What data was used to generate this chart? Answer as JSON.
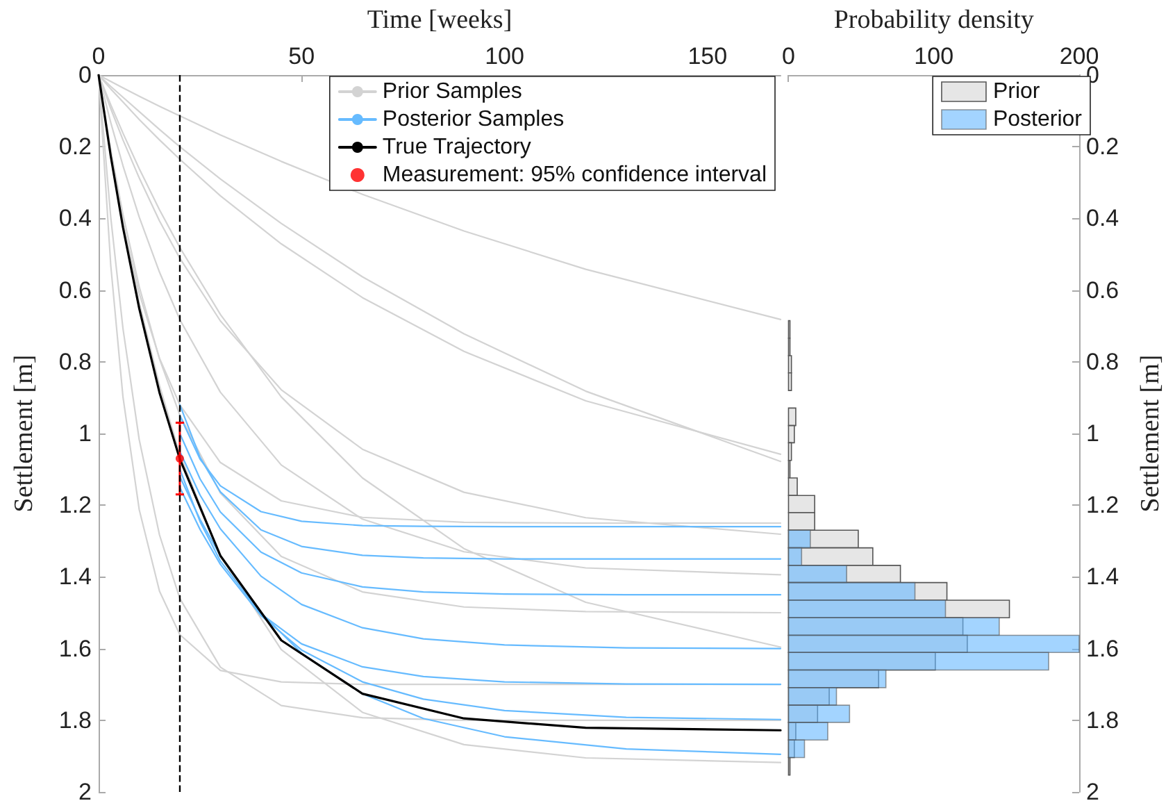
{
  "chart_data": [
    {
      "type": "line",
      "xlabel": "Time [weeks]",
      "ylabel": "Settlement [m]",
      "xlim": [
        0,
        168
      ],
      "xticks": [
        0,
        50,
        100,
        150
      ],
      "ylim": [
        2,
        0
      ],
      "yticks": [
        0,
        0.2,
        0.4,
        0.6,
        0.8,
        1,
        1.2,
        1.4,
        1.6,
        1.8,
        2
      ],
      "legend": "top right",
      "grid": false,
      "marker": "none",
      "line_style": "solid",
      "ref_lines": [
        {
          "axis": "x",
          "value": 20,
          "color": "#000000",
          "line_style": "dashed"
        }
      ],
      "series": [
        {
          "name": "Prior Samples",
          "color": "#d3d3d3",
          "x": [
            0,
            3,
            6,
            10,
            15,
            20,
            30,
            45,
            65,
            90,
            120,
            168
          ],
          "values": [
            0,
            0.018,
            0.036,
            0.059,
            0.087,
            0.114,
            0.167,
            0.241,
            0.333,
            0.435,
            0.542,
            0.682
          ]
        },
        {
          "color": "#d3d3d3",
          "x": [
            0,
            3,
            6,
            10,
            15,
            20,
            30,
            45,
            65,
            90,
            120,
            168
          ],
          "values": [
            0,
            0.039,
            0.075,
            0.124,
            0.181,
            0.235,
            0.337,
            0.471,
            0.621,
            0.771,
            0.909,
            1.058
          ]
        },
        {
          "color": "#d3d3d3",
          "x": [
            0,
            3,
            6,
            10,
            15,
            20,
            30,
            45,
            65,
            90,
            120,
            168
          ],
          "values": [
            0,
            0.094,
            0.181,
            0.287,
            0.407,
            0.511,
            0.686,
            0.878,
            1.044,
            1.164,
            1.235,
            1.281
          ]
        },
        {
          "color": "#d3d3d3",
          "x": [
            0,
            3,
            6,
            10,
            15,
            20,
            30,
            45,
            65,
            90,
            120,
            168
          ],
          "values": [
            0,
            0.209,
            0.389,
            0.59,
            0.792,
            0.948,
            1.166,
            1.343,
            1.442,
            1.484,
            1.497,
            1.5
          ]
        },
        {
          "color": "#d3d3d3",
          "x": [
            0,
            3,
            6,
            10,
            15,
            20,
            30,
            45,
            65,
            90,
            120,
            168
          ],
          "values": [
            0,
            0.532,
            0.898,
            1.212,
            1.44,
            1.561,
            1.661,
            1.693,
            1.7,
            1.7,
            1.7,
            1.7
          ]
        },
        {
          "color": "#d3d3d3",
          "x": [
            0,
            3,
            6,
            10,
            15,
            20,
            30,
            45,
            65,
            90,
            120,
            168
          ],
          "values": [
            0,
            0.217,
            0.409,
            0.634,
            0.866,
            1.058,
            1.342,
            1.603,
            1.778,
            1.868,
            1.905,
            1.918
          ]
        },
        {
          "color": "#d3d3d3",
          "x": [
            0,
            3,
            6,
            10,
            15,
            20,
            30,
            45,
            65,
            90,
            120,
            168
          ],
          "values": [
            0,
            0.398,
            0.707,
            1.017,
            1.283,
            1.46,
            1.652,
            1.759,
            1.793,
            1.8,
            1.8,
            1.8
          ]
        },
        {
          "color": "#d3d3d3",
          "x": [
            0,
            3,
            6,
            10,
            15,
            20,
            30,
            45,
            65,
            90,
            120,
            168
          ],
          "values": [
            0,
            0.083,
            0.162,
            0.261,
            0.376,
            0.481,
            0.668,
            0.898,
            1.124,
            1.321,
            1.471,
            1.596
          ]
        },
        {
          "color": "#d3d3d3",
          "x": [
            0,
            3,
            6,
            10,
            15,
            20,
            30,
            45,
            65,
            90,
            120,
            168
          ],
          "values": [
            0,
            0.032,
            0.062,
            0.102,
            0.152,
            0.2,
            0.29,
            0.414,
            0.563,
            0.722,
            0.882,
            1.078
          ]
        },
        {
          "color": "#d3d3d3",
          "x": [
            0,
            3,
            6,
            10,
            15,
            20,
            30,
            45,
            65,
            90,
            120,
            168
          ],
          "values": [
            0,
            0.133,
            0.253,
            0.396,
            0.55,
            0.682,
            0.885,
            1.088,
            1.239,
            1.33,
            1.375,
            1.394
          ]
        },
        {
          "color": "#d3d3d3",
          "x": [
            0,
            3,
            6,
            10,
            15,
            20,
            30,
            45,
            65,
            90,
            120,
            168
          ],
          "values": [
            0,
            0.226,
            0.413,
            0.609,
            0.79,
            0.92,
            1.081,
            1.188,
            1.234,
            1.248,
            1.25,
            1.25
          ]
        },
        {
          "name": "Posterior Samples",
          "color": "#66bbff",
          "x": [
            20,
            25,
            30,
            40,
            50,
            65,
            80,
            100,
            130,
            168
          ],
          "values": [
            0.95,
            1.072,
            1.146,
            1.218,
            1.245,
            1.257,
            1.259,
            1.26,
            1.26,
            1.26
          ]
        },
        {
          "color": "#66bbff",
          "x": [
            20,
            25,
            30,
            40,
            50,
            65,
            80,
            100,
            130,
            168
          ],
          "values": [
            1.0,
            1.127,
            1.219,
            1.331,
            1.389,
            1.428,
            1.442,
            1.448,
            1.45,
            1.45
          ]
        },
        {
          "color": "#66bbff",
          "x": [
            20,
            25,
            30,
            40,
            50,
            65,
            80,
            100,
            130,
            168
          ],
          "values": [
            1.05,
            1.172,
            1.266,
            1.398,
            1.477,
            1.542,
            1.573,
            1.59,
            1.598,
            1.6
          ]
        },
        {
          "color": "#66bbff",
          "x": [
            20,
            25,
            30,
            40,
            50,
            65,
            80,
            100,
            130,
            168
          ],
          "values": [
            1.12,
            1.24,
            1.341,
            1.5,
            1.613,
            1.726,
            1.795,
            1.846,
            1.88,
            1.895
          ]
        },
        {
          "color": "#66bbff",
          "x": [
            20,
            25,
            30,
            40,
            50,
            65,
            80,
            100,
            130,
            168
          ],
          "values": [
            0.92,
            1.067,
            1.163,
            1.269,
            1.315,
            1.34,
            1.347,
            1.35,
            1.35,
            1.35
          ]
        },
        {
          "color": "#66bbff",
          "x": [
            20,
            25,
            30,
            40,
            50,
            65,
            80,
            100,
            130,
            168
          ],
          "values": [
            1.1,
            1.246,
            1.356,
            1.503,
            1.587,
            1.651,
            1.678,
            1.693,
            1.699,
            1.7
          ]
        },
        {
          "color": "#66bbff",
          "x": [
            20,
            25,
            30,
            40,
            50,
            65,
            80,
            100,
            130,
            168
          ],
          "values": [
            1.15,
            1.268,
            1.365,
            1.508,
            1.604,
            1.693,
            1.741,
            1.773,
            1.792,
            1.798
          ]
        },
        {
          "name": "True Trajectory",
          "color": "#000000",
          "x": [
            0,
            3,
            6,
            10,
            15,
            20,
            30,
            45,
            65,
            90,
            120,
            168
          ],
          "values": [
            0,
            0.227,
            0.425,
            0.651,
            0.886,
            1.071,
            1.341,
            1.577,
            1.726,
            1.795,
            1.821,
            1.828
          ]
        },
        {
          "name": "Measurement: 95% confidence interval",
          "type": "scatter",
          "marker": "circle",
          "color": "#ff0000",
          "x": [
            20
          ],
          "values": [
            1.07
          ],
          "errors": [
            [
              0.97,
              1.17
            ]
          ]
        }
      ]
    },
    {
      "type": "histogram",
      "orientation": "horizontal",
      "xlabel": "Probability density",
      "ylabel": "Settlement [m]",
      "xlim": [
        0,
        200
      ],
      "xticks": [
        0,
        100,
        200
      ],
      "ylim": [
        2,
        0
      ],
      "yticks": [
        0,
        0.2,
        0.4,
        0.6,
        0.8,
        1,
        1.2,
        1.4,
        1.6,
        1.8,
        2
      ],
      "legend": "top right",
      "grid": false,
      "bins": [
        0.685,
        0.734,
        0.783,
        0.831,
        0.88,
        0.929,
        0.978,
        1.026,
        1.075,
        1.124,
        1.173,
        1.221,
        1.27,
        1.319,
        1.368,
        1.416,
        1.465,
        1.514,
        1.563,
        1.611,
        1.66,
        1.709,
        1.758,
        1.806,
        1.855,
        1.904,
        1.953
      ],
      "series": [
        {
          "name": "Prior",
          "color": "#e6e6e6",
          "values": [
            1,
            1,
            2,
            2,
            0,
            5,
            4,
            2,
            1,
            6,
            18,
            18,
            48,
            58,
            77,
            109,
            152,
            120,
            123,
            101,
            62,
            28,
            20,
            5,
            4,
            1
          ]
        },
        {
          "name": "Posterior",
          "color": "#66b8ff",
          "values": [
            0,
            0,
            0,
            0,
            0,
            0,
            0,
            0,
            0,
            0,
            0,
            0,
            15,
            9,
            40,
            87,
            108,
            145,
            200,
            179,
            67,
            33,
            42,
            27,
            11,
            0
          ]
        }
      ]
    }
  ]
}
